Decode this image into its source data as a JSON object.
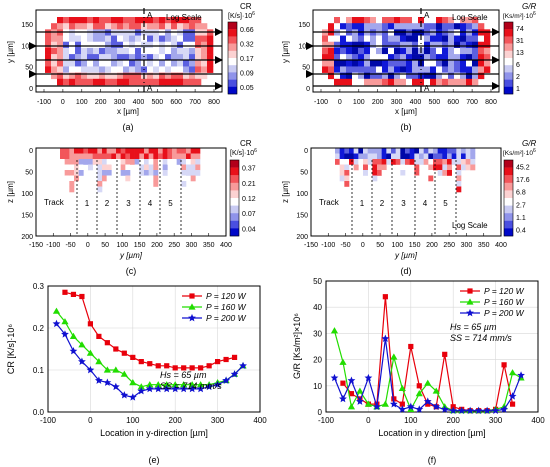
{
  "panels": {
    "a": {
      "caption": "(a)",
      "xlabel": "x [µm]",
      "ylabel": "y [µm]",
      "xticks": [
        "-100",
        "0",
        "100",
        "200",
        "300",
        "400",
        "500",
        "600",
        "700",
        "800"
      ],
      "yticks": [
        "0",
        "50",
        "100",
        "150"
      ],
      "scale_label": "Log Scale",
      "section_label": "A",
      "cb_title": "CR",
      "cb_unit": "[K/s]·10",
      "cb_exp": "6",
      "cb_ticks": [
        "0.66",
        "0.32",
        "0.17",
        "0.09",
        "0.05"
      ]
    },
    "b": {
      "caption": "(b)",
      "xlabel": "x [µm]",
      "ylabel": "y [µm]",
      "xticks": [
        "-100",
        "0",
        "100",
        "200",
        "300",
        "400",
        "500",
        "600",
        "700",
        "800"
      ],
      "yticks": [
        "0",
        "50",
        "100",
        "150"
      ],
      "scale_label": "Log Scale",
      "section_label": "A",
      "cb_title": "G/R",
      "cb_unit": "[Ks/m²]·10",
      "cb_exp": "6",
      "cb_ticks": [
        "74",
        "31",
        "13",
        "6",
        "2",
        "1"
      ]
    },
    "c": {
      "caption": "(c)",
      "xlabel": "y [µm]",
      "ylabel": "z [µm]",
      "xticks": [
        "-150",
        "-100",
        "-50",
        "0",
        "50",
        "100",
        "150",
        "200",
        "250",
        "300",
        "350",
        "400"
      ],
      "yticks": [
        "0",
        "50",
        "100",
        "150",
        "200"
      ],
      "track_label": "Track",
      "tracks": [
        "1",
        "2",
        "3",
        "4",
        "5"
      ],
      "cb_title": "CR",
      "cb_unit": "[K/s]·10",
      "cb_exp": "6",
      "cb_ticks": [
        "0.37",
        "0.21",
        "0.12",
        "0.07",
        "0.04"
      ]
    },
    "d": {
      "caption": "(d)",
      "xlabel": "y [µm]",
      "ylabel": "z [µm]",
      "xticks": [
        "-150",
        "-100",
        "-50",
        "0",
        "50",
        "100",
        "150",
        "200",
        "250",
        "300",
        "350",
        "400"
      ],
      "yticks": [
        "0",
        "50",
        "100",
        "150",
        "200"
      ],
      "track_label": "Track",
      "tracks": [
        "1",
        "2",
        "3",
        "4",
        "5"
      ],
      "scale_label": "Log Scale",
      "cb_title": "G/R",
      "cb_unit": "[Ks/m²]·10",
      "cb_exp": "6",
      "cb_ticks": [
        "45.2",
        "17.6",
        "6.8",
        "2.7",
        "1.1",
        "0.4"
      ]
    }
  },
  "colors": {
    "red": "#e8000b",
    "green": "#22dd00",
    "blue": "#1010d0"
  },
  "chart_data": [
    {
      "id": "e",
      "type": "line",
      "caption": "(e)",
      "xlabel": "Location in y-direction [µm]",
      "ylabel": "CR [K/s]·10⁶",
      "xlim": [
        -100,
        400
      ],
      "ylim": [
        0,
        0.3
      ],
      "xticks": [
        "-100",
        "0",
        "100",
        "200",
        "300",
        "400"
      ],
      "yticks": [
        "0.0",
        "0.1",
        "0.2",
        "0.3"
      ],
      "annotations": [
        "Hs = 65 µm",
        "SS = 714 mm/s"
      ],
      "legend_position": "top-right",
      "series": [
        {
          "name": "P = 120 W",
          "marker": "square",
          "color": "#e8000b",
          "x": [
            -60,
            -40,
            -20,
            0,
            20,
            40,
            60,
            80,
            100,
            120,
            140,
            160,
            180,
            200,
            220,
            240,
            260,
            280,
            300,
            320,
            340
          ],
          "y": [
            0.285,
            0.28,
            0.275,
            0.21,
            0.18,
            0.165,
            0.15,
            0.14,
            0.13,
            0.12,
            0.115,
            0.11,
            0.11,
            0.105,
            0.105,
            0.105,
            0.105,
            0.11,
            0.12,
            0.125,
            0.13
          ]
        },
        {
          "name": "P = 160 W",
          "marker": "triangle",
          "color": "#22dd00",
          "x": [
            -80,
            -60,
            -40,
            -20,
            0,
            20,
            40,
            60,
            80,
            100,
            120,
            140,
            160,
            180,
            200,
            220,
            240,
            260,
            280,
            300,
            320,
            340,
            360
          ],
          "y": [
            0.24,
            0.215,
            0.18,
            0.16,
            0.14,
            0.12,
            0.1,
            0.1,
            0.09,
            0.07,
            0.06,
            0.065,
            0.065,
            0.065,
            0.065,
            0.065,
            0.065,
            0.065,
            0.065,
            0.07,
            0.075,
            0.09,
            0.11
          ]
        },
        {
          "name": "P = 200 W",
          "marker": "star",
          "color": "#1010d0",
          "x": [
            -80,
            -60,
            -40,
            -20,
            0,
            20,
            40,
            60,
            80,
            100,
            120,
            140,
            160,
            180,
            200,
            220,
            240,
            260,
            280,
            300,
            320,
            340,
            360
          ],
          "y": [
            0.21,
            0.185,
            0.145,
            0.12,
            0.1,
            0.075,
            0.07,
            0.06,
            0.04,
            0.035,
            0.05,
            0.055,
            0.055,
            0.055,
            0.055,
            0.055,
            0.055,
            0.055,
            0.06,
            0.065,
            0.075,
            0.09,
            0.11
          ]
        }
      ]
    },
    {
      "id": "f",
      "type": "line",
      "caption": "(f)",
      "xlabel": "Location in y direction [µm]",
      "ylabel": "G/R [Ks/m²]×10⁶",
      "xlim": [
        -100,
        400
      ],
      "ylim": [
        0,
        50
      ],
      "xticks": [
        "-100",
        "0",
        "100",
        "200",
        "300",
        "400"
      ],
      "yticks": [
        "0",
        "10",
        "20",
        "30",
        "40",
        "50"
      ],
      "annotations": [
        "Hs = 65 µm",
        "SS = 714 mm/s"
      ],
      "legend_position": "top-right",
      "series": [
        {
          "name": "P = 120 W",
          "marker": "square",
          "color": "#e8000b",
          "x": [
            -60,
            -40,
            -20,
            0,
            20,
            40,
            60,
            80,
            100,
            120,
            140,
            160,
            180,
            200,
            220,
            240,
            260,
            280,
            300,
            320,
            340
          ],
          "y": [
            11,
            7,
            5,
            3,
            3,
            44,
            5,
            3,
            25,
            10,
            3,
            2,
            22,
            2,
            1,
            0.5,
            0.5,
            0.5,
            1,
            18,
            3
          ]
        },
        {
          "name": "P = 160 W",
          "marker": "triangle",
          "color": "#22dd00",
          "x": [
            -80,
            -60,
            -40,
            -20,
            0,
            20,
            40,
            60,
            80,
            100,
            120,
            140,
            160,
            180,
            200,
            220,
            240,
            260,
            280,
            300,
            320,
            340,
            360
          ],
          "y": [
            31,
            19,
            2,
            8,
            3,
            2,
            3,
            21,
            9,
            1,
            7,
            11,
            8,
            2,
            0.5,
            0.5,
            0.5,
            0.5,
            0.5,
            1,
            2,
            15,
            13
          ]
        },
        {
          "name": "P = 200 W",
          "marker": "star",
          "color": "#1010d0",
          "x": [
            -80,
            -60,
            -40,
            -20,
            0,
            20,
            40,
            60,
            80,
            100,
            120,
            140,
            160,
            180,
            200,
            220,
            240,
            260,
            280,
            300,
            320,
            340,
            360
          ],
          "y": [
            13,
            5,
            12,
            4,
            13,
            2,
            28,
            3,
            1,
            2,
            1,
            4,
            2,
            1,
            0.5,
            0.5,
            0.5,
            0.5,
            0.5,
            0.5,
            1,
            6,
            14
          ]
        }
      ]
    }
  ]
}
